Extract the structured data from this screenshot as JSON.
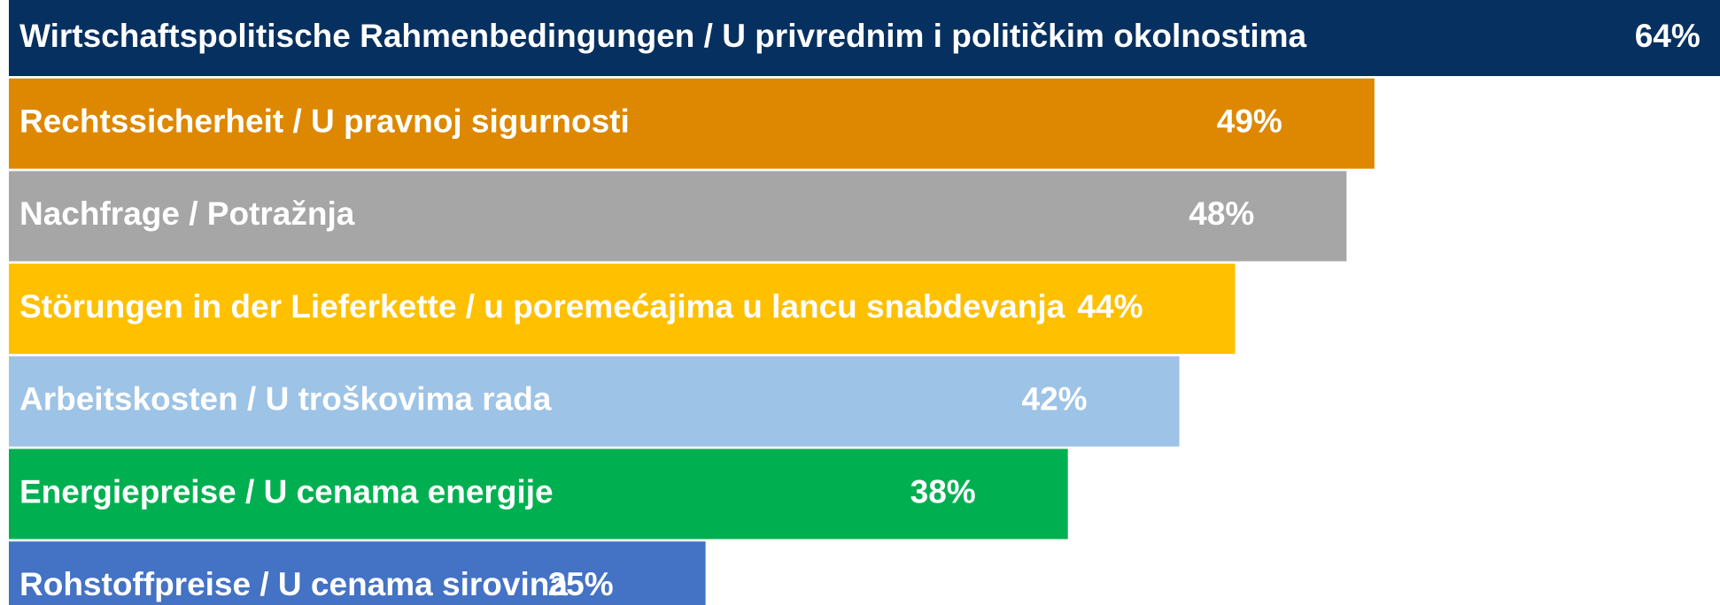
{
  "chart_data": {
    "type": "barh",
    "categories": [
      "Wirtschaftspolitische Rahmenbedingungen / U privrednim i političkim okolnostima",
      "Rechtssicherheit / U pravnoj sigurnosti",
      "Nachfrage / Potražnja",
      "Störungen in der Lieferkette / u poremećajima u lancu snabdevanja",
      "Arbeitskosten / U troškovima rada",
      "Energiepreise / U cenama energije",
      "Rohstoffpreise / U cenama sirovina"
    ],
    "values": [
      64,
      49,
      48,
      44,
      42,
      38,
      25
    ],
    "value_labels": [
      "64%",
      "49%",
      "48%",
      "44%",
      "42%",
      "38%",
      "25%"
    ],
    "colors": [
      "#06305f",
      "#dd8800",
      "#a6a6a6",
      "#ffc000",
      "#9dc3e6",
      "#00b050",
      "#4472c4"
    ],
    "xlim": [
      0,
      61.4
    ]
  }
}
